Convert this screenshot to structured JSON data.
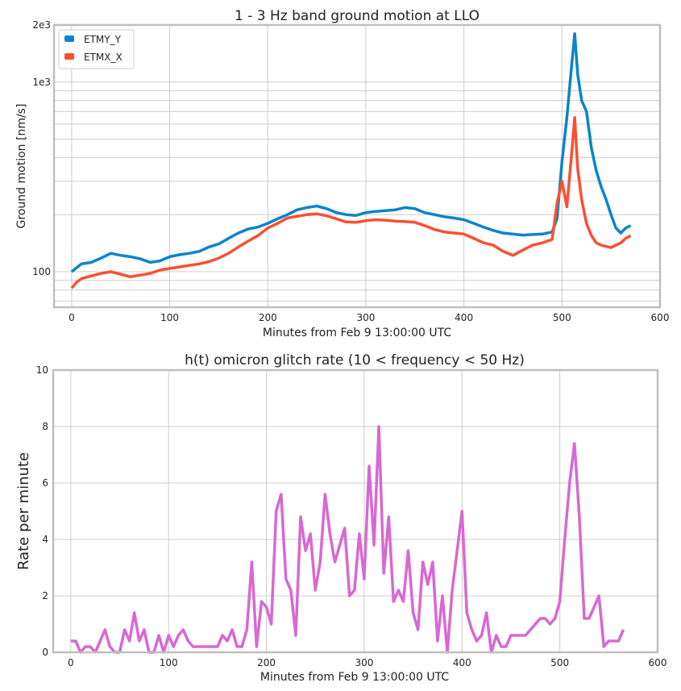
{
  "chart_data": [
    {
      "type": "line",
      "title": "1 - 3 Hz band ground motion at LLO",
      "xlabel": "Minutes from Feb 9 13:00:00 UTC",
      "ylabel": "Ground motion [nm/s]",
      "yscale": "log",
      "xlim": [
        -18,
        600
      ],
      "ylim": [
        65,
        2000
      ],
      "x_ticks": [
        0,
        100,
        200,
        300,
        400,
        500,
        600
      ],
      "y_tick_labels": [
        {
          "value": 100,
          "label": "100"
        },
        {
          "value": 1000,
          "label": "1e3"
        },
        {
          "value": 2000,
          "label": "2e3"
        }
      ],
      "legend": "top-left",
      "grid": true,
      "series": [
        {
          "name": "ETMY_Y",
          "color": "#0a84cc",
          "x": [
            0,
            5,
            10,
            20,
            30,
            40,
            50,
            60,
            70,
            80,
            90,
            100,
            110,
            120,
            130,
            140,
            150,
            160,
            170,
            180,
            190,
            200,
            210,
            220,
            230,
            240,
            250,
            260,
            270,
            280,
            290,
            300,
            310,
            320,
            330,
            340,
            350,
            360,
            370,
            380,
            390,
            400,
            410,
            420,
            430,
            440,
            450,
            460,
            470,
            480,
            490,
            495,
            500,
            505,
            510,
            513,
            516,
            520,
            525,
            530,
            535,
            540,
            545,
            550,
            555,
            560,
            565,
            570
          ],
          "values": [
            100,
            105,
            110,
            112,
            118,
            125,
            122,
            120,
            117,
            112,
            114,
            120,
            123,
            125,
            128,
            135,
            140,
            150,
            160,
            168,
            172,
            180,
            190,
            200,
            212,
            218,
            222,
            215,
            205,
            200,
            198,
            205,
            208,
            210,
            212,
            218,
            215,
            205,
            200,
            195,
            192,
            188,
            180,
            172,
            165,
            160,
            158,
            156,
            157,
            158,
            162,
            190,
            380,
            650,
            1250,
            1800,
            1100,
            800,
            700,
            450,
            340,
            280,
            240,
            200,
            170,
            160,
            170,
            175
          ]
        },
        {
          "name": "ETMX_X",
          "color": "#fc4f30",
          "x": [
            0,
            5,
            10,
            20,
            30,
            40,
            50,
            60,
            70,
            80,
            90,
            100,
            110,
            120,
            130,
            140,
            150,
            160,
            170,
            180,
            190,
            200,
            210,
            220,
            230,
            240,
            250,
            260,
            270,
            280,
            290,
            300,
            310,
            320,
            330,
            340,
            350,
            360,
            370,
            380,
            390,
            400,
            410,
            420,
            430,
            440,
            450,
            460,
            470,
            480,
            490,
            495,
            500,
            505,
            510,
            513,
            516,
            520,
            525,
            530,
            535,
            540,
            545,
            550,
            555,
            560,
            565,
            570
          ],
          "values": [
            82,
            88,
            92,
            95,
            98,
            100,
            97,
            94,
            96,
            98,
            102,
            104,
            106,
            108,
            110,
            113,
            118,
            125,
            135,
            145,
            155,
            170,
            180,
            192,
            196,
            200,
            202,
            197,
            190,
            183,
            182,
            186,
            188,
            187,
            185,
            184,
            182,
            175,
            167,
            162,
            160,
            158,
            150,
            142,
            138,
            128,
            122,
            130,
            138,
            142,
            148,
            230,
            300,
            220,
            430,
            650,
            350,
            240,
            180,
            155,
            142,
            138,
            136,
            134,
            138,
            142,
            150,
            155
          ]
        }
      ]
    },
    {
      "type": "line",
      "title": "h(t) omicron glitch rate  (10 < frequency < 50 Hz)",
      "xlabel": "Minutes from Feb 9 13:00:00 UTC",
      "ylabel": "Rate per minute",
      "xlim": [
        -18,
        600
      ],
      "ylim": [
        0,
        10
      ],
      "x_ticks": [
        0,
        100,
        200,
        300,
        400,
        500,
        600
      ],
      "y_ticks": [
        0,
        2,
        4,
        6,
        8,
        10
      ],
      "grid": true,
      "series": [
        {
          "color": "#d868d2",
          "x": [
            0,
            5,
            10,
            15,
            20,
            25,
            30,
            35,
            40,
            45,
            50,
            55,
            60,
            65,
            70,
            75,
            80,
            85,
            90,
            95,
            100,
            105,
            110,
            115,
            120,
            125,
            130,
            135,
            140,
            145,
            150,
            155,
            160,
            165,
            170,
            175,
            180,
            185,
            190,
            195,
            200,
            205,
            210,
            215,
            220,
            225,
            230,
            235,
            240,
            245,
            250,
            255,
            260,
            265,
            270,
            275,
            280,
            285,
            290,
            295,
            300,
            305,
            310,
            315,
            320,
            325,
            330,
            335,
            340,
            345,
            350,
            355,
            360,
            365,
            370,
            375,
            380,
            385,
            390,
            395,
            400,
            405,
            410,
            415,
            420,
            425,
            430,
            435,
            440,
            445,
            450,
            455,
            460,
            465,
            470,
            475,
            480,
            485,
            490,
            495,
            500,
            505,
            510,
            515,
            520,
            525,
            530,
            535,
            540,
            545,
            550,
            555,
            560,
            565
          ],
          "values": [
            0.4,
            0.4,
            0.0,
            0.2,
            0.2,
            0.0,
            0.4,
            0.8,
            0.2,
            0.0,
            0.0,
            0.8,
            0.4,
            1.4,
            0.4,
            0.8,
            0.0,
            0.0,
            0.6,
            0.0,
            0.6,
            0.2,
            0.6,
            0.8,
            0.4,
            0.2,
            0.2,
            0.2,
            0.2,
            0.2,
            0.2,
            0.6,
            0.4,
            0.8,
            0.2,
            0.2,
            0.8,
            3.2,
            0.2,
            1.8,
            1.6,
            1.0,
            5.0,
            5.6,
            2.6,
            2.2,
            0.6,
            4.8,
            3.6,
            4.2,
            2.2,
            3.2,
            5.6,
            4.2,
            3.2,
            3.8,
            4.4,
            2.0,
            2.2,
            4.2,
            2.6,
            6.6,
            3.8,
            8.0,
            2.8,
            4.8,
            1.8,
            2.2,
            1.8,
            3.6,
            1.4,
            0.8,
            3.2,
            2.4,
            3.2,
            0.4,
            2.0,
            0.0,
            2.2,
            3.6,
            5.0,
            1.4,
            0.8,
            0.4,
            0.6,
            1.4,
            0.0,
            0.6,
            0.2,
            0.2,
            0.6,
            0.6,
            0.6,
            0.6,
            0.8,
            1.0,
            1.2,
            1.2,
            1.0,
            1.2,
            1.8,
            4.0,
            6.0,
            7.4,
            4.8,
            1.2,
            1.2,
            1.6,
            2.0,
            0.2,
            0.4,
            0.4,
            0.4,
            0.8
          ]
        }
      ]
    }
  ]
}
